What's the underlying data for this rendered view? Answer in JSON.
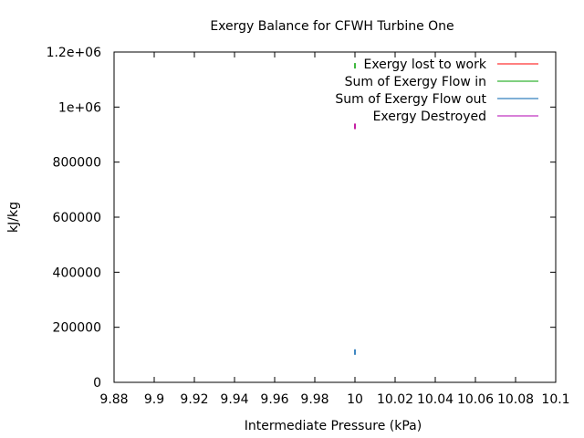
{
  "chart_data": {
    "type": "scatter",
    "title": "Exergy Balance for CFWH Turbine One",
    "xlabel": "Intermediate Pressure (kPa)",
    "ylabel": "kJ/kg",
    "xlim": [
      9.88,
      10.1
    ],
    "ylim": [
      0,
      1200000
    ],
    "x_ticks": [
      "9.88",
      "9.9",
      "9.92",
      "9.94",
      "9.96",
      "9.98",
      "10",
      "10.02",
      "10.04",
      "10.06",
      "10.08",
      "10.1"
    ],
    "y_ticks": [
      "0",
      "200000",
      "400000",
      "600000",
      "800000",
      "1e+06",
      "1.2e+06"
    ],
    "grid": false,
    "legend_position": "top-right",
    "series": [
      {
        "name": "Exergy lost to work",
        "color": "#ff0000",
        "x": [
          10
        ],
        "y": [
          930000
        ]
      },
      {
        "name": "Sum of Exergy Flow in",
        "color": "#00a000",
        "x": [
          10
        ],
        "y": [
          1150000
        ]
      },
      {
        "name": "Sum of Exergy Flow out",
        "color": "#0060ad",
        "x": [
          10
        ],
        "y": [
          110000
        ]
      },
      {
        "name": "Exergy Destroyed",
        "color": "#b000b0",
        "x": [
          10
        ],
        "y": [
          930000
        ]
      }
    ]
  }
}
